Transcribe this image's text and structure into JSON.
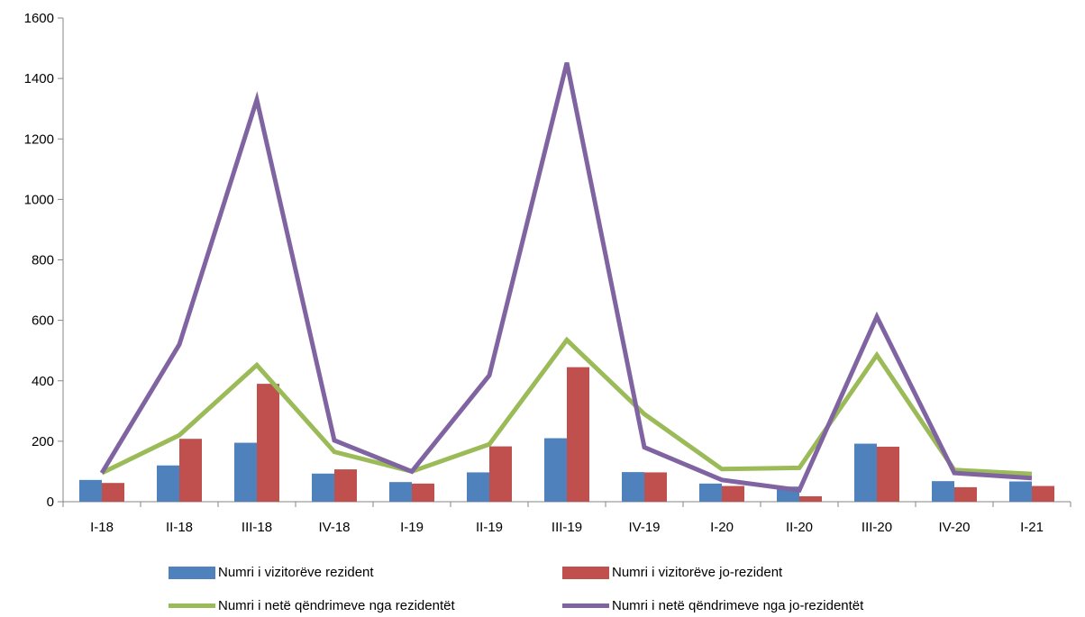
{
  "chart_data": {
    "type": "bar+line",
    "categories": [
      "I-18",
      "II-18",
      "III-18",
      "IV-18",
      "I-19",
      "II-19",
      "III-19",
      "IV-19",
      "I-20",
      "II-20",
      "III-20",
      "IV-20",
      "I-21"
    ],
    "ylim": [
      0,
      1600
    ],
    "yticks": [
      "0",
      "200",
      "400",
      "600",
      "800",
      "1000",
      "1200",
      "1400",
      "1600"
    ],
    "grid": false,
    "legend_position": "bottom",
    "bar_series": [
      {
        "name": "Numri i vizitorëve rezident",
        "color": "#4f81bd",
        "values": [
          72,
          120,
          195,
          93,
          65,
          97,
          210,
          98,
          60,
          50,
          192,
          68,
          67
        ]
      },
      {
        "name": "Numri i vizitorëve jo-rezident",
        "color": "#c0504d",
        "values": [
          62,
          208,
          390,
          107,
          60,
          183,
          445,
          97,
          52,
          18,
          182,
          48,
          52
        ]
      }
    ],
    "line_series": [
      {
        "name": "Numri i netë qëndrimeve nga rezidentët",
        "color": "#9bbb59",
        "values": [
          95,
          220,
          452,
          165,
          100,
          190,
          535,
          290,
          108,
          112,
          485,
          105,
          92
        ]
      },
      {
        "name": "Numri i netë qëndrimeve nga jo-rezidentët",
        "color": "#8064a2",
        "values": [
          95,
          520,
          1330,
          203,
          100,
          418,
          1452,
          180,
          72,
          38,
          612,
          95,
          78
        ]
      }
    ]
  }
}
